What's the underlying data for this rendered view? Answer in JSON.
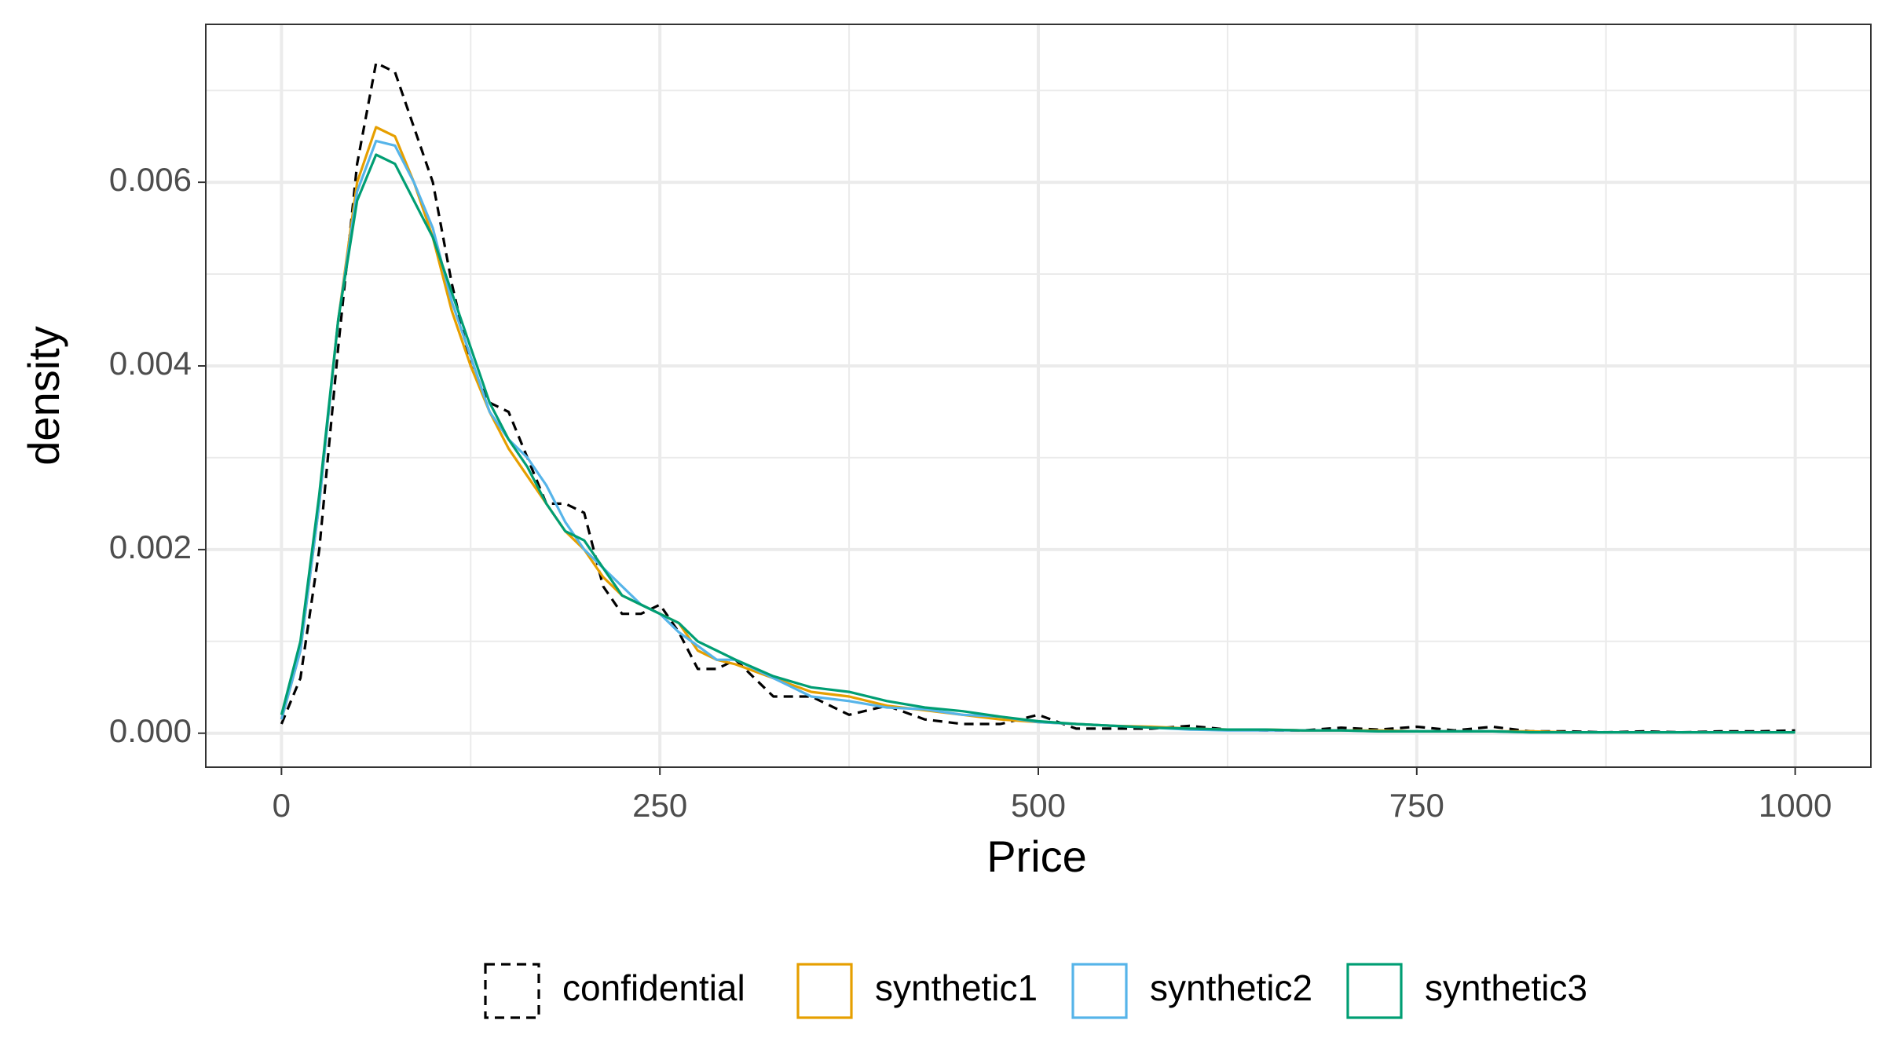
{
  "chart_data": {
    "type": "line",
    "x_label": "Price",
    "y_label": "density",
    "x": [
      0,
      12.5,
      25,
      37.5,
      50,
      62.5,
      75,
      87.5,
      100,
      112.5,
      125,
      137.5,
      150,
      162.5,
      175,
      187.5,
      200,
      212.5,
      225,
      237.5,
      250,
      262.5,
      275,
      287.5,
      300,
      325,
      350,
      375,
      400,
      425,
      450,
      475,
      500,
      525,
      550,
      575,
      600,
      625,
      650,
      675,
      700,
      725,
      750,
      775,
      800,
      825,
      850,
      875,
      900,
      925,
      950,
      975,
      1000
    ],
    "series": [
      {
        "name": "confidential",
        "color": "#000000",
        "linetype": "dashed",
        "values": [
          0.0001,
          0.0006,
          0.002,
          0.0042,
          0.0062,
          0.0073,
          0.0072,
          0.0066,
          0.006,
          0.0049,
          0.004,
          0.0036,
          0.0035,
          0.003,
          0.0025,
          0.0025,
          0.0024,
          0.0016,
          0.0013,
          0.0013,
          0.0014,
          0.0011,
          0.0007,
          0.0007,
          0.0008,
          0.0004,
          0.0004,
          0.0002,
          0.0003,
          0.00015,
          0.0001,
          0.0001,
          0.0002,
          5e-05,
          5e-05,
          5e-05,
          8e-05,
          4e-05,
          3e-05,
          3e-05,
          6e-05,
          4e-05,
          7e-05,
          3e-05,
          7e-05,
          2e-05,
          2e-05,
          1e-05,
          2e-05,
          1e-05,
          2e-05,
          2e-05,
          3e-05
        ]
      },
      {
        "name": "synthetic1",
        "color": "#E69F00",
        "linetype": "solid",
        "values": [
          0.00015,
          0.0009,
          0.0025,
          0.0045,
          0.006,
          0.0066,
          0.0065,
          0.006,
          0.0054,
          0.0046,
          0.004,
          0.0035,
          0.0031,
          0.0028,
          0.0025,
          0.0022,
          0.002,
          0.0017,
          0.0015,
          0.0014,
          0.0013,
          0.0012,
          0.0009,
          0.0008,
          0.00075,
          0.0006,
          0.00045,
          0.0004,
          0.0003,
          0.00025,
          0.0002,
          0.00015,
          0.00012,
          0.0001,
          8e-05,
          7e-05,
          5e-05,
          4e-05,
          4e-05,
          3e-05,
          3e-05,
          3e-05,
          2e-05,
          2e-05,
          2e-05,
          2e-05,
          1e-05,
          1e-05,
          1e-05,
          1e-05,
          1e-05,
          1e-05,
          1e-05
        ]
      },
      {
        "name": "synthetic2",
        "color": "#56B4E9",
        "linetype": "solid",
        "values": [
          0.00015,
          0.0009,
          0.0025,
          0.0045,
          0.0059,
          0.00645,
          0.0064,
          0.006,
          0.0055,
          0.0047,
          0.0041,
          0.0035,
          0.0032,
          0.003,
          0.0027,
          0.0023,
          0.002,
          0.0018,
          0.0016,
          0.0014,
          0.0013,
          0.0011,
          0.00095,
          0.0008,
          0.0008,
          0.0006,
          0.0004,
          0.00035,
          0.00028,
          0.00026,
          0.0002,
          0.00018,
          0.00012,
          0.0001,
          8e-05,
          6e-05,
          4e-05,
          3e-05,
          3e-05,
          3e-05,
          3e-05,
          2e-05,
          2e-05,
          2e-05,
          2e-05,
          1e-05,
          1e-05,
          1e-05,
          1e-05,
          1e-05,
          1e-05,
          1e-05,
          1e-05
        ]
      },
      {
        "name": "synthetic3",
        "color": "#009E73",
        "linetype": "solid",
        "values": [
          0.0002,
          0.001,
          0.0026,
          0.0045,
          0.0058,
          0.0063,
          0.0062,
          0.0058,
          0.0054,
          0.0048,
          0.0042,
          0.0036,
          0.0032,
          0.0029,
          0.0025,
          0.0022,
          0.0021,
          0.0018,
          0.0015,
          0.0014,
          0.0013,
          0.0012,
          0.001,
          0.0009,
          0.0008,
          0.00062,
          0.0005,
          0.00045,
          0.00035,
          0.00028,
          0.00024,
          0.00018,
          0.00013,
          0.0001,
          8e-05,
          6e-05,
          5e-05,
          4e-05,
          4e-05,
          3e-05,
          3e-05,
          2e-05,
          2e-05,
          2e-05,
          2e-05,
          1e-05,
          1e-05,
          1e-05,
          1e-05,
          1e-05,
          1e-05,
          1e-05,
          1e-05
        ]
      }
    ],
    "xlim": [
      -50,
      1050
    ],
    "ylim": [
      -0.00037,
      0.00772
    ],
    "xticks": [
      0,
      250,
      500,
      750,
      1000
    ],
    "yticks": [
      {
        "value": 0,
        "label": "0.000"
      },
      {
        "value": 0.002,
        "label": "0.002"
      },
      {
        "value": 0.004,
        "label": "0.004"
      },
      {
        "value": 0.006,
        "label": "0.006"
      }
    ],
    "xminorticks": [
      125,
      375,
      625,
      875
    ],
    "yminorticks": [
      0.001,
      0.003,
      0.005,
      0.007
    ],
    "grid": true,
    "legend": "bottom"
  }
}
